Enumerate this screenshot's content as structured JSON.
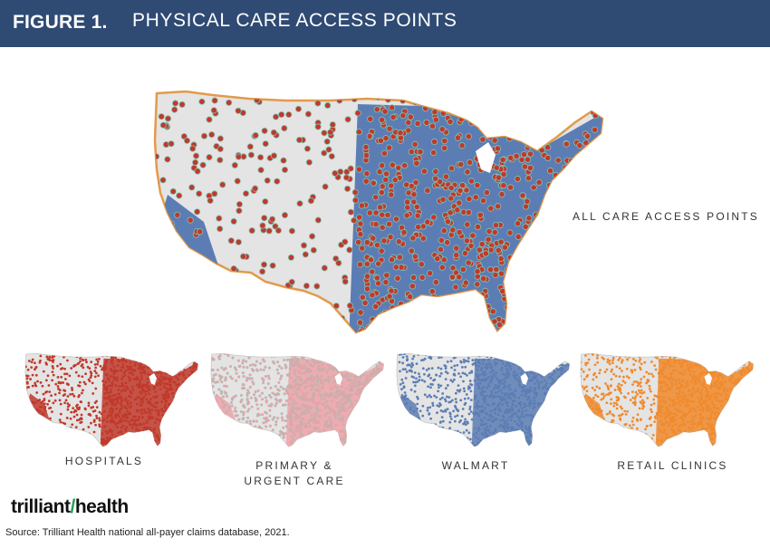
{
  "header": {
    "figure_label": "FIGURE 1.",
    "title": "PHYSICAL CARE ACCESS POINTS"
  },
  "main_map": {
    "label": "ALL CARE ACCESS POINTS",
    "fill": "#5c7db4",
    "dot_color": "#c0392b"
  },
  "small_maps": [
    {
      "label": "HOSPITALS",
      "color": "#c0392b"
    },
    {
      "label": "PRIMARY &\nURGENT CARE",
      "color": "#f2a1a7"
    },
    {
      "label": "WALMART",
      "color": "#5c7db4"
    },
    {
      "label": "RETAIL CLINICS",
      "color": "#f08a2c"
    }
  ],
  "logo": {
    "text_a": "trilliant",
    "text_b": "health"
  },
  "source": "Source: Trilliant Health national all-payer claims database, 2021."
}
